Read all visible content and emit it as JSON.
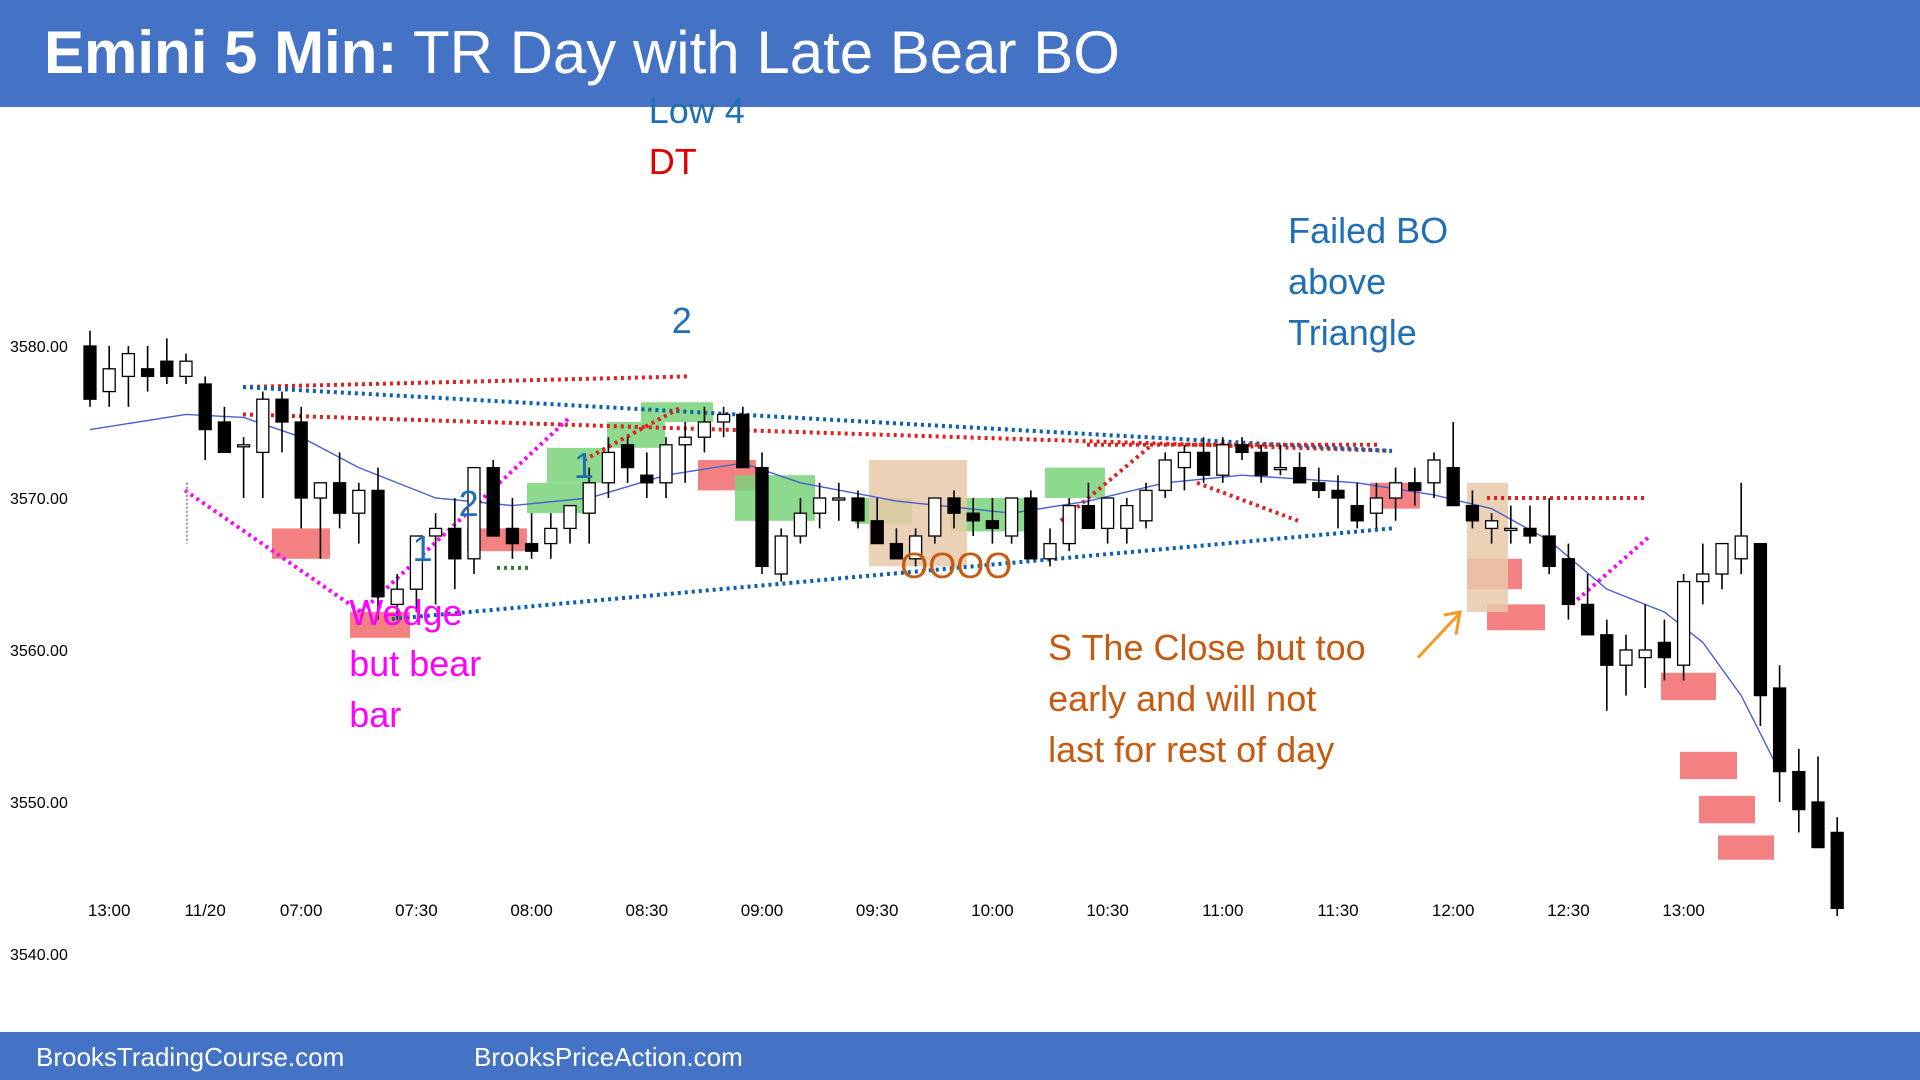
{
  "header": {
    "title_bold": "Emini 5 Min:",
    "title_rest": "TR Day with Late Bear BO"
  },
  "footer": {
    "left": "BrooksTradingCourse.com",
    "right": "BrooksPriceAction.com"
  },
  "colors": {
    "header": "#4472c4",
    "bull_body": "#ffffff",
    "bear_body": "#000000",
    "ema": "#4a5fd0",
    "annotation_blue": "#1f6fb5",
    "annotation_red": "#e00000",
    "annotation_magenta": "#ff00ff",
    "annotation_orange": "#c55a11",
    "trendline_blue": "#0a60b0",
    "trendline_red": "#e02020",
    "highlight_red": "#f26b6b",
    "highlight_green": "#79d279",
    "highlight_tan": "#e8c9a8"
  },
  "chart_data": {
    "type": "candlestick",
    "title": "Emini 5 Min: TR Day with Late Bear BO",
    "ylim": [
      3537,
      3596
    ],
    "y_ticks": [
      "3540.00",
      "3550.00",
      "3560.00",
      "3570.00",
      "3580.00"
    ],
    "x_ticks": [
      {
        "bar": 1,
        "label": "13:00"
      },
      {
        "bar": 6,
        "label": "11/20"
      },
      {
        "bar": 11,
        "label": "07:00"
      },
      {
        "bar": 17,
        "label": "07:30"
      },
      {
        "bar": 23,
        "label": "08:00"
      },
      {
        "bar": 29,
        "label": "08:30"
      },
      {
        "bar": 35,
        "label": "09:00"
      },
      {
        "bar": 41,
        "label": "09:30"
      },
      {
        "bar": 47,
        "label": "10:00"
      },
      {
        "bar": 53,
        "label": "10:30"
      },
      {
        "bar": 59,
        "label": "11:00"
      },
      {
        "bar": 65,
        "label": "11:30"
      },
      {
        "bar": 71,
        "label": "12:00"
      },
      {
        "bar": 77,
        "label": "12:30"
      },
      {
        "bar": 83,
        "label": "13:00"
      }
    ],
    "bars": [
      [
        3580,
        3581,
        3576,
        3576.5
      ],
      [
        3577,
        3580,
        3576,
        3578.5
      ],
      [
        3578,
        3580,
        3576,
        3579.5
      ],
      [
        3578.5,
        3580,
        3577,
        3578
      ],
      [
        3579,
        3580.5,
        3577.5,
        3578
      ],
      [
        3578,
        3579.5,
        3577.5,
        3579
      ],
      [
        3577.5,
        3578,
        3572.5,
        3574.5
      ],
      [
        3575,
        3576,
        3573,
        3573
      ],
      [
        3573.5,
        3574,
        3570,
        3573.5
      ],
      [
        3573,
        3577,
        3570,
        3576.5
      ],
      [
        3576.5,
        3577,
        3573,
        3575
      ],
      [
        3575,
        3576,
        3568,
        3570
      ],
      [
        3570,
        3571,
        3566,
        3571
      ],
      [
        3571,
        3573,
        3568,
        3569
      ],
      [
        3569,
        3571,
        3567,
        3570.5
      ],
      [
        3570.5,
        3572,
        3562,
        3563.5
      ],
      [
        3563,
        3565,
        3562,
        3564
      ],
      [
        3564,
        3567.5,
        3562.5,
        3567.5
      ],
      [
        3567.5,
        3569,
        3563,
        3568
      ],
      [
        3568,
        3570,
        3564,
        3566
      ],
      [
        3566,
        3572,
        3565,
        3572
      ],
      [
        3572,
        3572.5,
        3569,
        3567.5
      ],
      [
        3568,
        3570,
        3566,
        3567
      ],
      [
        3567,
        3569,
        3566,
        3566.5
      ],
      [
        3567,
        3569,
        3566,
        3568
      ],
      [
        3568,
        3569.5,
        3567,
        3569.5
      ],
      [
        3569,
        3572,
        3567,
        3571
      ],
      [
        3571,
        3574,
        3570,
        3573
      ],
      [
        3573.5,
        3574,
        3571,
        3572
      ],
      [
        3571.5,
        3573,
        3570,
        3571
      ],
      [
        3571,
        3574,
        3570,
        3573.5
      ],
      [
        3573.5,
        3575,
        3571,
        3574
      ],
      [
        3574,
        3576,
        3573,
        3575
      ],
      [
        3575,
        3576,
        3574,
        3575.5
      ],
      [
        3575.5,
        3576,
        3572,
        3572
      ],
      [
        3572,
        3573,
        3565,
        3565.5
      ],
      [
        3565,
        3568,
        3564.5,
        3567.5
      ],
      [
        3567.5,
        3570,
        3567,
        3569
      ],
      [
        3569,
        3571,
        3568,
        3570
      ],
      [
        3570,
        3571,
        3568.5,
        3570
      ],
      [
        3570,
        3570.5,
        3568,
        3568.5
      ],
      [
        3568.5,
        3570,
        3567,
        3567
      ],
      [
        3567,
        3568,
        3566,
        3566
      ],
      [
        3566,
        3568,
        3565.5,
        3567.5
      ],
      [
        3567.5,
        3570,
        3567,
        3570
      ],
      [
        3570,
        3570.5,
        3568,
        3569
      ],
      [
        3569,
        3570,
        3567.5,
        3568.5
      ],
      [
        3568.5,
        3570,
        3567,
        3568
      ],
      [
        3567.5,
        3570,
        3567,
        3570
      ],
      [
        3570,
        3570.5,
        3566,
        3566
      ],
      [
        3566,
        3568,
        3565.5,
        3567
      ],
      [
        3567,
        3570,
        3566.5,
        3569.5
      ],
      [
        3569.5,
        3571,
        3568,
        3568
      ],
      [
        3568,
        3570,
        3567,
        3570
      ],
      [
        3568,
        3570,
        3567,
        3569.5
      ],
      [
        3568.5,
        3571,
        3568,
        3570.5
      ],
      [
        3570.5,
        3573,
        3570,
        3572.5
      ],
      [
        3572,
        3573.5,
        3570.5,
        3573
      ],
      [
        3573,
        3574,
        3571,
        3571.5
      ],
      [
        3571.5,
        3574,
        3571,
        3573.5
      ],
      [
        3573.5,
        3574,
        3572.5,
        3573
      ],
      [
        3573,
        3573.5,
        3571,
        3571.5
      ],
      [
        3572,
        3573.5,
        3571.5,
        3572
      ],
      [
        3572,
        3573,
        3571,
        3571
      ],
      [
        3571,
        3572,
        3570,
        3570.5
      ],
      [
        3570.5,
        3571.5,
        3568,
        3570
      ],
      [
        3569.5,
        3571,
        3568,
        3568.5
      ],
      [
        3569,
        3571,
        3568,
        3570
      ],
      [
        3570,
        3572,
        3568.5,
        3571
      ],
      [
        3571,
        3572,
        3569.5,
        3570.5
      ],
      [
        3571,
        3573,
        3570,
        3572.5
      ],
      [
        3572,
        3575,
        3570,
        3569.5
      ],
      [
        3569.5,
        3570.5,
        3568,
        3568.5
      ],
      [
        3568,
        3569,
        3567,
        3568.5
      ],
      [
        3568,
        3569.5,
        3567,
        3568
      ],
      [
        3568,
        3569.5,
        3567,
        3567.5
      ],
      [
        3567.5,
        3570,
        3565,
        3565.5
      ],
      [
        3566,
        3567,
        3562,
        3563
      ],
      [
        3563,
        3565,
        3561,
        3561
      ],
      [
        3561,
        3562,
        3556,
        3559
      ],
      [
        3559,
        3561,
        3557,
        3560
      ],
      [
        3559.5,
        3563,
        3557.5,
        3560
      ],
      [
        3560.5,
        3562,
        3558,
        3559.5
      ],
      [
        3559,
        3565,
        3558,
        3564.5
      ],
      [
        3564.5,
        3567,
        3563,
        3565
      ],
      [
        3565,
        3566,
        3564,
        3567
      ],
      [
        3566,
        3571,
        3565,
        3567.5
      ],
      [
        3567,
        3567,
        3555,
        3557
      ],
      [
        3557.5,
        3559,
        3550,
        3552
      ],
      [
        3552,
        3553.5,
        3548,
        3549.5
      ],
      [
        3550,
        3553,
        3547.5,
        3547
      ],
      [
        3548,
        3549,
        3542.5,
        3543
      ]
    ],
    "ema20": [
      [
        0,
        3574.5
      ],
      [
        5,
        3575.5
      ],
      [
        8,
        3575.3
      ],
      [
        11,
        3574
      ],
      [
        14,
        3572
      ],
      [
        18,
        3570
      ],
      [
        22,
        3569.5
      ],
      [
        26,
        3570
      ],
      [
        30,
        3571.5
      ],
      [
        34,
        3572.3
      ],
      [
        37,
        3571
      ],
      [
        42,
        3569.8
      ],
      [
        48,
        3569
      ],
      [
        52,
        3569.8
      ],
      [
        56,
        3571
      ],
      [
        60,
        3571.5
      ],
      [
        66,
        3571
      ],
      [
        70,
        3570.2
      ],
      [
        73,
        3569.3
      ],
      [
        76,
        3567.2
      ],
      [
        79,
        3564
      ],
      [
        82,
        3562.5
      ],
      [
        84,
        3560.5
      ],
      [
        86,
        3557
      ],
      [
        88,
        3552
      ]
    ],
    "annotations": [
      {
        "text": "Low 4",
        "color": "blue",
        "bar": 29.1,
        "price": 3595.5
      },
      {
        "text": "DT",
        "color": "red",
        "bar": 29.1,
        "price": 3592.2
      },
      {
        "text": "2",
        "color": "blue",
        "bar": 30.3,
        "price": 3581.7
      },
      {
        "text": "1",
        "color": "blue",
        "bar": 25.2,
        "price": 3572.2
      },
      {
        "text": "2",
        "color": "blue",
        "bar": 19.2,
        "price": 3569.7
      },
      {
        "text": "1",
        "color": "blue",
        "bar": 16.8,
        "price": 3566.7
      },
      {
        "text": "Failed BO\nabove\nTriangle",
        "color": "blue",
        "bar": 62.4,
        "price": 3587.6
      },
      {
        "text": "Wedge\nbut bear\nbar",
        "color": "magenta",
        "bar": 13.5,
        "price": 3562.5
      },
      {
        "text": "OOOO",
        "color": "orange",
        "bar": 42.2,
        "price": 3565.6
      },
      {
        "text": "S The Close but too\nearly and will not\nlast for rest of day",
        "color": "orange",
        "bar": 49.9,
        "price": 3560.2
      }
    ]
  }
}
